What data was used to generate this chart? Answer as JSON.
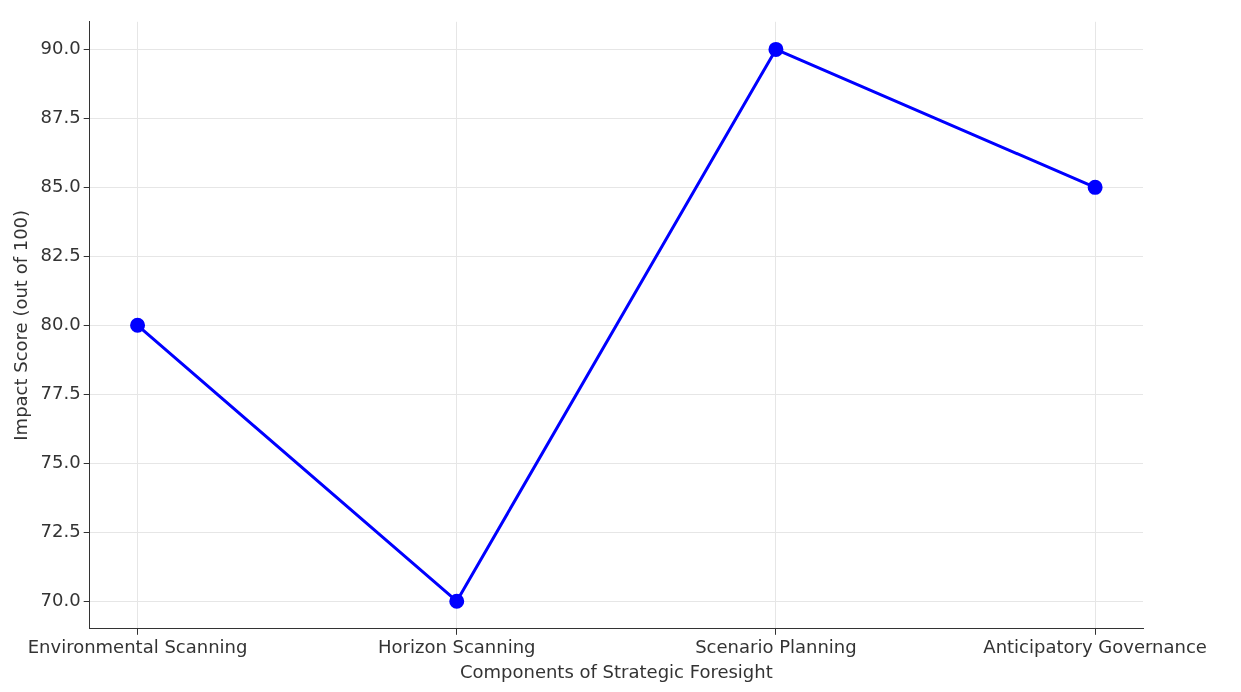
{
  "chart_data": {
    "type": "line",
    "xlabel": "Components of Strategic Foresight",
    "ylabel": "Impact Score (out of 100)",
    "categories": [
      "Environmental Scanning",
      "Horizon Scanning",
      "Scenario Planning",
      "Anticipatory Governance"
    ],
    "series": [
      {
        "color": "#0000ff",
        "values": [
          80,
          70,
          90,
          85
        ]
      }
    ],
    "ylim": [
      69,
      91
    ],
    "yticks": [
      {
        "value": 70,
        "label": "70.0"
      },
      {
        "value": 72.5,
        "label": "72.5"
      },
      {
        "value": 75,
        "label": "75.0"
      },
      {
        "value": 77.5,
        "label": "77.5"
      },
      {
        "value": 80,
        "label": "80.0"
      },
      {
        "value": 82.5,
        "label": "82.5"
      },
      {
        "value": 85,
        "label": "85.0"
      },
      {
        "value": 87.5,
        "label": "87.5"
      },
      {
        "value": 90,
        "label": "90.0"
      }
    ],
    "grid": true,
    "marker": "circle",
    "line_style": "solid",
    "legend": false
  }
}
